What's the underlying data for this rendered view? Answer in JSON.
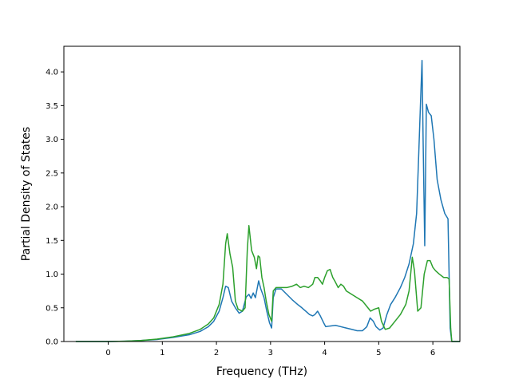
{
  "chart_data": {
    "type": "line",
    "title": "",
    "xlabel": "Frequency (THz)",
    "ylabel": "Partial Density of States",
    "xlim": [
      -0.82,
      6.5
    ],
    "ylim": [
      0.0,
      4.38
    ],
    "x_ticks": [
      "0",
      "1",
      "2",
      "3",
      "4",
      "5",
      "6"
    ],
    "y_ticks": [
      "0.0",
      "0.5",
      "1.0",
      "1.5",
      "2.0",
      "2.5",
      "3.0",
      "3.5",
      "4.0"
    ],
    "grid": false,
    "legend": "none",
    "series": [
      {
        "color": "#1f77b4",
        "points": [
          [
            -0.6,
            0.0
          ],
          [
            -0.3,
            0.0
          ],
          [
            0.0,
            0.0
          ],
          [
            0.3,
            0.005
          ],
          [
            0.6,
            0.015
          ],
          [
            0.9,
            0.03
          ],
          [
            1.2,
            0.06
          ],
          [
            1.5,
            0.1
          ],
          [
            1.7,
            0.15
          ],
          [
            1.85,
            0.22
          ],
          [
            1.95,
            0.3
          ],
          [
            2.05,
            0.45
          ],
          [
            2.12,
            0.65
          ],
          [
            2.17,
            0.82
          ],
          [
            2.22,
            0.8
          ],
          [
            2.28,
            0.6
          ],
          [
            2.35,
            0.5
          ],
          [
            2.42,
            0.42
          ],
          [
            2.48,
            0.45
          ],
          [
            2.55,
            0.66
          ],
          [
            2.6,
            0.7
          ],
          [
            2.64,
            0.64
          ],
          [
            2.68,
            0.72
          ],
          [
            2.72,
            0.65
          ],
          [
            2.78,
            0.9
          ],
          [
            2.82,
            0.78
          ],
          [
            2.88,
            0.65
          ],
          [
            2.93,
            0.45
          ],
          [
            2.98,
            0.28
          ],
          [
            3.02,
            0.2
          ],
          [
            3.05,
            0.65
          ],
          [
            3.1,
            0.78
          ],
          [
            3.2,
            0.78
          ],
          [
            3.3,
            0.7
          ],
          [
            3.4,
            0.62
          ],
          [
            3.5,
            0.55
          ],
          [
            3.58,
            0.5
          ],
          [
            3.65,
            0.45
          ],
          [
            3.72,
            0.4
          ],
          [
            3.78,
            0.38
          ],
          [
            3.82,
            0.4
          ],
          [
            3.87,
            0.45
          ],
          [
            3.92,
            0.38
          ],
          [
            3.98,
            0.28
          ],
          [
            4.02,
            0.22
          ],
          [
            4.1,
            0.23
          ],
          [
            4.2,
            0.24
          ],
          [
            4.3,
            0.22
          ],
          [
            4.4,
            0.2
          ],
          [
            4.5,
            0.18
          ],
          [
            4.6,
            0.16
          ],
          [
            4.7,
            0.16
          ],
          [
            4.78,
            0.22
          ],
          [
            4.84,
            0.35
          ],
          [
            4.9,
            0.3
          ],
          [
            4.95,
            0.22
          ],
          [
            5.02,
            0.17
          ],
          [
            5.08,
            0.2
          ],
          [
            5.15,
            0.4
          ],
          [
            5.22,
            0.55
          ],
          [
            5.3,
            0.65
          ],
          [
            5.4,
            0.8
          ],
          [
            5.48,
            0.95
          ],
          [
            5.56,
            1.15
          ],
          [
            5.64,
            1.45
          ],
          [
            5.7,
            1.9
          ],
          [
            5.74,
            2.8
          ],
          [
            5.77,
            3.5
          ],
          [
            5.8,
            4.17
          ],
          [
            5.82,
            3.0
          ],
          [
            5.85,
            1.42
          ],
          [
            5.88,
            3.52
          ],
          [
            5.92,
            3.4
          ],
          [
            5.97,
            3.35
          ],
          [
            6.02,
            3.0
          ],
          [
            6.08,
            2.4
          ],
          [
            6.15,
            2.1
          ],
          [
            6.22,
            1.9
          ],
          [
            6.28,
            1.82
          ],
          [
            6.32,
            0.2
          ],
          [
            6.35,
            0.0
          ],
          [
            6.8,
            0.0
          ]
        ]
      },
      {
        "color": "#2ca02c",
        "points": [
          [
            -0.6,
            0.0
          ],
          [
            -0.3,
            0.0
          ],
          [
            0.0,
            0.0
          ],
          [
            0.3,
            0.005
          ],
          [
            0.6,
            0.015
          ],
          [
            0.9,
            0.035
          ],
          [
            1.2,
            0.07
          ],
          [
            1.5,
            0.12
          ],
          [
            1.7,
            0.18
          ],
          [
            1.85,
            0.26
          ],
          [
            1.95,
            0.35
          ],
          [
            2.05,
            0.55
          ],
          [
            2.12,
            0.85
          ],
          [
            2.17,
            1.45
          ],
          [
            2.2,
            1.6
          ],
          [
            2.25,
            1.3
          ],
          [
            2.3,
            1.1
          ],
          [
            2.35,
            0.6
          ],
          [
            2.4,
            0.48
          ],
          [
            2.48,
            0.45
          ],
          [
            2.53,
            0.5
          ],
          [
            2.57,
            1.35
          ],
          [
            2.6,
            1.72
          ],
          [
            2.65,
            1.35
          ],
          [
            2.7,
            1.25
          ],
          [
            2.74,
            1.08
          ],
          [
            2.77,
            1.27
          ],
          [
            2.8,
            1.25
          ],
          [
            2.84,
            0.95
          ],
          [
            2.88,
            0.8
          ],
          [
            2.92,
            0.6
          ],
          [
            2.97,
            0.4
          ],
          [
            3.02,
            0.3
          ],
          [
            3.05,
            0.75
          ],
          [
            3.1,
            0.8
          ],
          [
            3.2,
            0.8
          ],
          [
            3.3,
            0.8
          ],
          [
            3.4,
            0.82
          ],
          [
            3.48,
            0.85
          ],
          [
            3.55,
            0.8
          ],
          [
            3.62,
            0.82
          ],
          [
            3.7,
            0.8
          ],
          [
            3.78,
            0.85
          ],
          [
            3.82,
            0.95
          ],
          [
            3.87,
            0.95
          ],
          [
            3.92,
            0.9
          ],
          [
            3.96,
            0.85
          ],
          [
            4.0,
            0.95
          ],
          [
            4.05,
            1.05
          ],
          [
            4.1,
            1.07
          ],
          [
            4.15,
            0.95
          ],
          [
            4.2,
            0.88
          ],
          [
            4.25,
            0.8
          ],
          [
            4.3,
            0.85
          ],
          [
            4.35,
            0.82
          ],
          [
            4.4,
            0.75
          ],
          [
            4.5,
            0.7
          ],
          [
            4.6,
            0.65
          ],
          [
            4.7,
            0.6
          ],
          [
            4.8,
            0.5
          ],
          [
            4.85,
            0.45
          ],
          [
            4.92,
            0.48
          ],
          [
            5.0,
            0.5
          ],
          [
            5.05,
            0.3
          ],
          [
            5.12,
            0.18
          ],
          [
            5.2,
            0.2
          ],
          [
            5.3,
            0.3
          ],
          [
            5.4,
            0.4
          ],
          [
            5.5,
            0.55
          ],
          [
            5.56,
            0.75
          ],
          [
            5.62,
            1.25
          ],
          [
            5.66,
            1.05
          ],
          [
            5.72,
            0.45
          ],
          [
            5.78,
            0.5
          ],
          [
            5.84,
            1.0
          ],
          [
            5.9,
            1.2
          ],
          [
            5.95,
            1.2
          ],
          [
            6.0,
            1.1
          ],
          [
            6.05,
            1.05
          ],
          [
            6.12,
            1.0
          ],
          [
            6.2,
            0.95
          ],
          [
            6.26,
            0.95
          ],
          [
            6.3,
            0.93
          ],
          [
            6.33,
            0.2
          ],
          [
            6.35,
            0.0
          ],
          [
            6.8,
            0.0
          ]
        ]
      }
    ]
  }
}
